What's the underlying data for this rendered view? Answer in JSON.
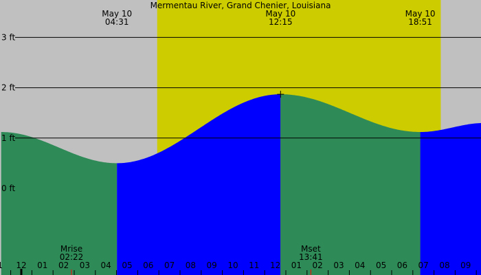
{
  "chart_data": {
    "type": "area",
    "title": "Mermentau River, Grand Chenier, Louisiana",
    "y_unit": "ft",
    "ylim": [
      -1.4,
      3.6
    ],
    "y_ticks": [
      {
        "value": 0,
        "label": "0 ft"
      },
      {
        "value": 1,
        "label": "1 ft"
      },
      {
        "value": 2,
        "label": "2 ft"
      },
      {
        "value": 3,
        "label": "3 ft"
      }
    ],
    "x_hours": [
      0,
      1,
      2,
      3,
      4,
      5,
      6,
      7,
      8,
      9,
      10,
      11,
      12,
      13,
      14,
      15,
      16,
      17,
      18,
      19,
      20,
      21
    ],
    "x_tick_labels": [
      "1",
      "12",
      "01",
      "02",
      "03",
      "04",
      "05",
      "06",
      "07",
      "08",
      "09",
      "10",
      "11",
      "12",
      "01",
      "02",
      "03",
      "04",
      "05",
      "06",
      "07",
      "08",
      "09"
    ],
    "daylight": {
      "start": 6.42,
      "end": 19.82
    },
    "tide_extremes": [
      {
        "date": "May 10",
        "time": "04:31",
        "hour": 4.52,
        "height": 0.5,
        "type": "low"
      },
      {
        "date": "May 10",
        "time": "12:15",
        "hour": 12.25,
        "height": 1.87,
        "type": "high"
      },
      {
        "date": "May 10",
        "time": "18:51",
        "hour": 18.85,
        "height": 1.12,
        "type": "low"
      }
    ],
    "range_start": {
      "hour": -0.95,
      "height": 1.12
    },
    "range_end": {
      "hour": 21.9,
      "height": 1.3
    },
    "moon_events": [
      {
        "label": "Mrise",
        "time": "02:22",
        "hour": 2.37
      },
      {
        "label": "Mset",
        "time": "13:41",
        "hour": 13.68
      }
    ],
    "colors": {
      "background": "#c0c0c0",
      "daylight": "#cccc00",
      "rising": "#0000ff",
      "falling": "#2e8b57",
      "grid": "#000000",
      "moon_marker": "#ff0000"
    }
  }
}
